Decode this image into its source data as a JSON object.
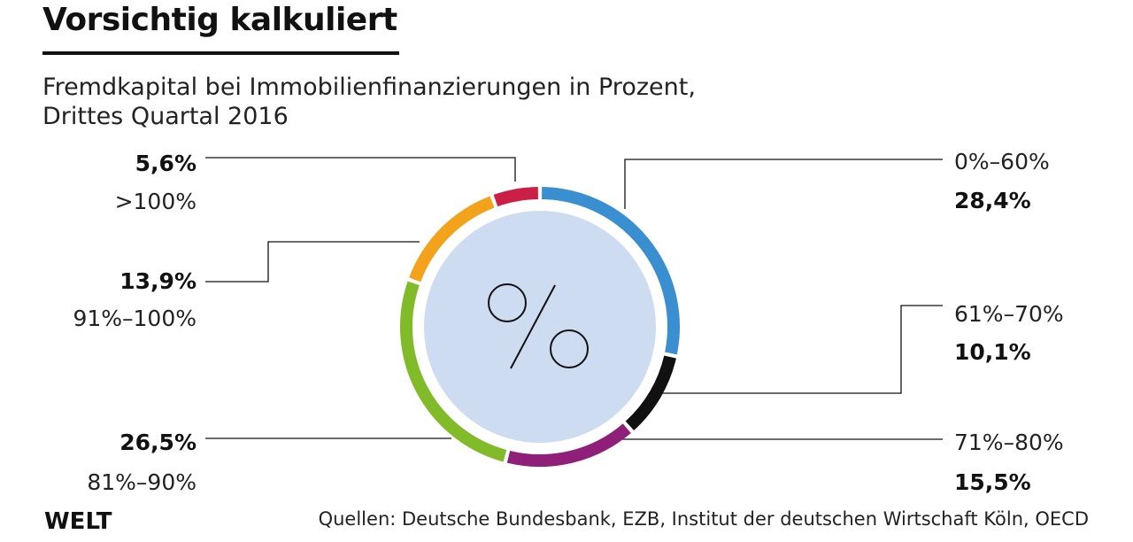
{
  "title": "Vorsichtig kalkuliert",
  "subtitle_line1": "Fremdkapital bei Immobilienfinanzierungen in Prozent,",
  "subtitle_line2": "Drittes Quartal 2016",
  "center_symbol": "%",
  "brand": "WELT",
  "source": "Quellen: Deutsche Bundesbank, EZB, Institut der deutschen Wirtschaft Köln, OECD",
  "chart_data": {
    "type": "pie",
    "donut": true,
    "title": "Vorsichtig kalkuliert",
    "subtitle": "Fremdkapital bei Immobilienfinanzierungen in Prozent, Drittes Quartal 2016",
    "categories": [
      "0%–60%",
      "61%–70%",
      "71%–80%",
      "81%–90%",
      "91%–100%",
      ">100%"
    ],
    "values": [
      28.4,
      10.1,
      15.5,
      26.5,
      13.9,
      5.6
    ],
    "value_labels": [
      "28,4%",
      "10,1%",
      "15,5%",
      "26,5%",
      "13,9%",
      "5,6%"
    ],
    "colors": [
      "#3a8fd0",
      "#111111",
      "#8f1f78",
      "#82bb2a",
      "#f3a21b",
      "#cc1f47"
    ],
    "center_fill": "#cddcf1"
  },
  "labels": {
    "gt100": {
      "value": "5,6%",
      "category": ">100%"
    },
    "r91_100": {
      "value": "13,9%",
      "category": "91%–100%"
    },
    "r81_90": {
      "value": "26,5%",
      "category": "81%–90%"
    },
    "r0_60": {
      "value": "28,4%",
      "category": "0%–60%"
    },
    "r61_70": {
      "value": "10,1%",
      "category": "61%–70%"
    },
    "r71_80": {
      "value": "15,5%",
      "category": "71%–80%"
    }
  }
}
